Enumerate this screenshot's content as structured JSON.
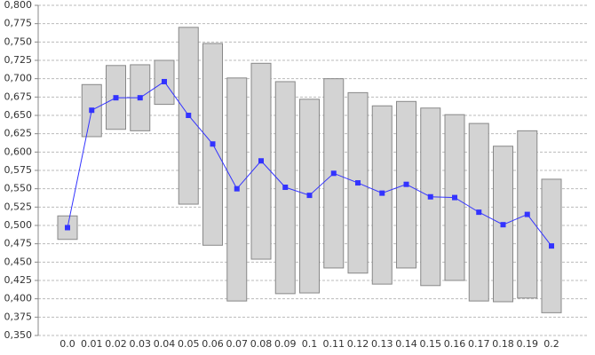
{
  "chart_data": {
    "type": "line",
    "categories": [
      "0.0",
      "0.01",
      "0.02",
      "0.03",
      "0.04",
      "0.05",
      "0.06",
      "0.07",
      "0.08",
      "0.09",
      "0.1",
      "0.11",
      "0.12",
      "0.13",
      "0.14",
      "0.15",
      "0.16",
      "0.17",
      "0.18",
      "0.19",
      "0.2"
    ],
    "values": [
      0.497,
      0.657,
      0.674,
      0.674,
      0.696,
      0.65,
      0.611,
      0.55,
      0.588,
      0.552,
      0.541,
      0.571,
      0.558,
      0.544,
      0.556,
      0.539,
      0.538,
      0.518,
      0.501,
      0.515,
      0.472
    ],
    "low": [
      0.481,
      0.621,
      0.631,
      0.629,
      0.665,
      0.529,
      0.473,
      0.397,
      0.454,
      0.407,
      0.408,
      0.442,
      0.435,
      0.42,
      0.442,
      0.418,
      0.425,
      0.397,
      0.396,
      0.401,
      0.381
    ],
    "high": [
      0.513,
      0.692,
      0.718,
      0.719,
      0.725,
      0.77,
      0.748,
      0.701,
      0.721,
      0.696,
      0.672,
      0.7,
      0.681,
      0.663,
      0.669,
      0.66,
      0.651,
      0.639,
      0.608,
      0.629,
      0.563
    ],
    "color": "#3333ff",
    "range_color": "#d3d3d3",
    "ylim": [
      0.35,
      0.8
    ],
    "yticks": [
      {
        "value": 0.35,
        "label": "0,350"
      },
      {
        "value": 0.375,
        "label": "0,375"
      },
      {
        "value": 0.4,
        "label": "0,400"
      },
      {
        "value": 0.425,
        "label": "0,425"
      },
      {
        "value": 0.45,
        "label": "0,450"
      },
      {
        "value": 0.475,
        "label": "0,475"
      },
      {
        "value": 0.5,
        "label": "0,500"
      },
      {
        "value": 0.525,
        "label": "0,525"
      },
      {
        "value": 0.55,
        "label": "0,550"
      },
      {
        "value": 0.575,
        "label": "0,575"
      },
      {
        "value": 0.6,
        "label": "0,600"
      },
      {
        "value": 0.625,
        "label": "0,625"
      },
      {
        "value": 0.65,
        "label": "0,650"
      },
      {
        "value": 0.675,
        "label": "0,675"
      },
      {
        "value": 0.7,
        "label": "0,700"
      },
      {
        "value": 0.725,
        "label": "0,725"
      },
      {
        "value": 0.75,
        "label": "0,750"
      },
      {
        "value": 0.775,
        "label": "0,775"
      },
      {
        "value": 0.8,
        "label": "0,800"
      }
    ],
    "grid": true
  }
}
